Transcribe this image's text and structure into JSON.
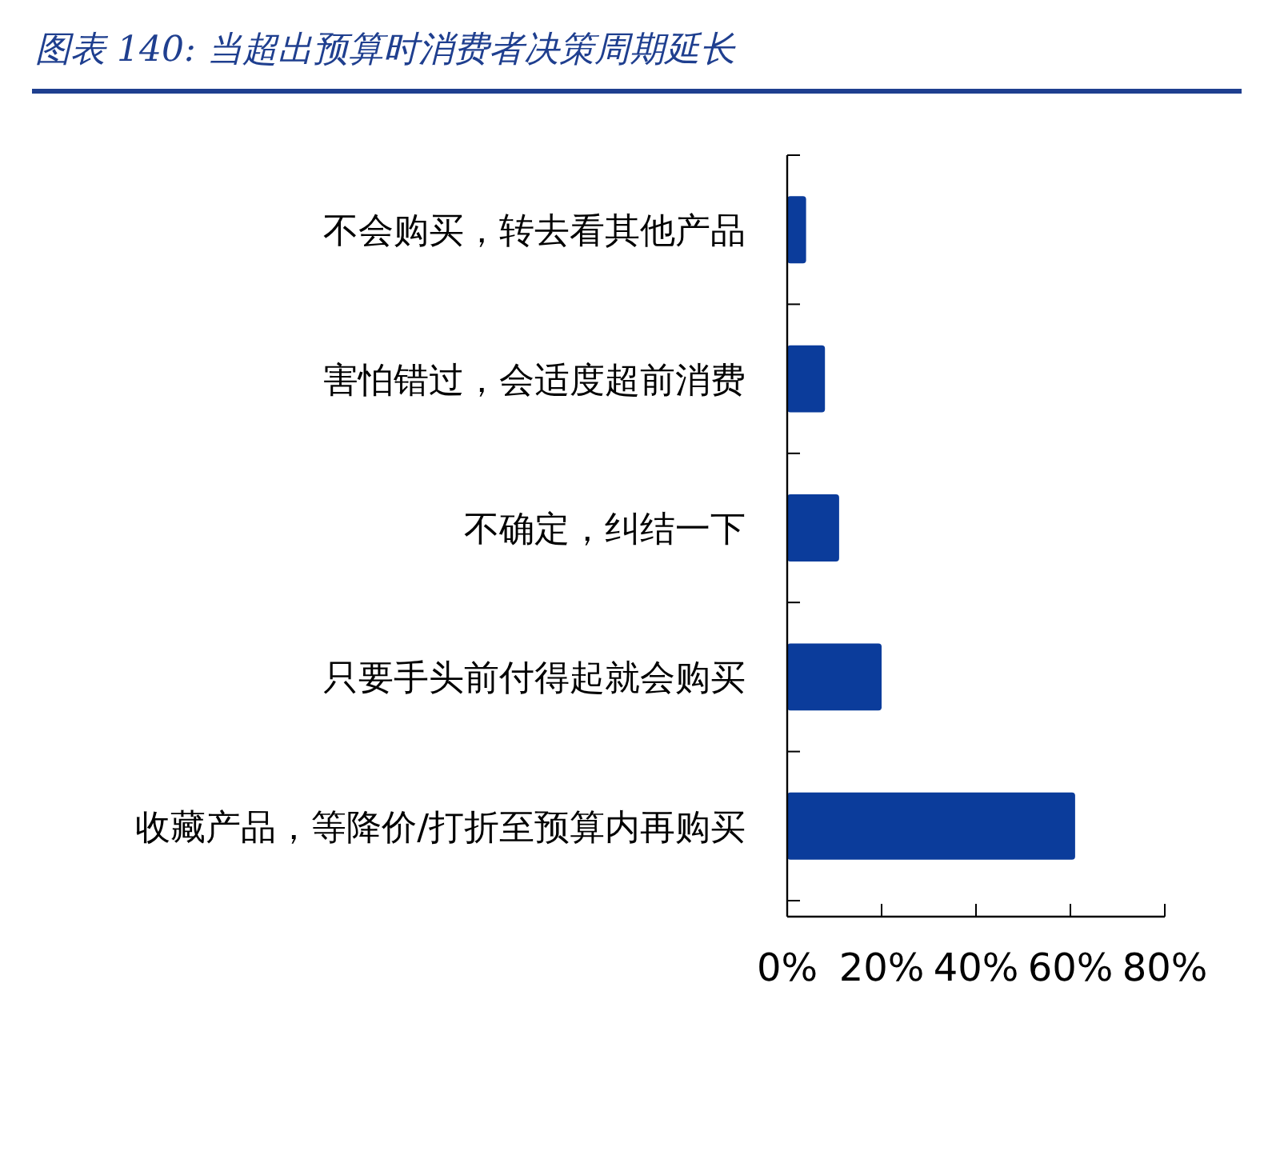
{
  "chart_data": {
    "type": "bar",
    "orientation": "horizontal",
    "title": "图表 140:  当超出预算时消费者决策周期延长",
    "categories": [
      "不会购买，转去看其他产品",
      "害怕错过，会适度超前消费",
      "不确定，纠结一下",
      "只要手头前付得起就会购买",
      "收藏产品，等降价/打折至预算内再购买"
    ],
    "values": [
      4,
      8,
      11,
      20,
      61
    ],
    "color": "#0b3c9b",
    "xlim": [
      0,
      80
    ],
    "xticks": [
      {
        "value": 0,
        "label": "0%"
      },
      {
        "value": 20,
        "label": "20%"
      },
      {
        "value": 40,
        "label": "40%"
      },
      {
        "value": 60,
        "label": "60%"
      },
      {
        "value": 80,
        "label": "80%"
      }
    ],
    "grid": false
  }
}
